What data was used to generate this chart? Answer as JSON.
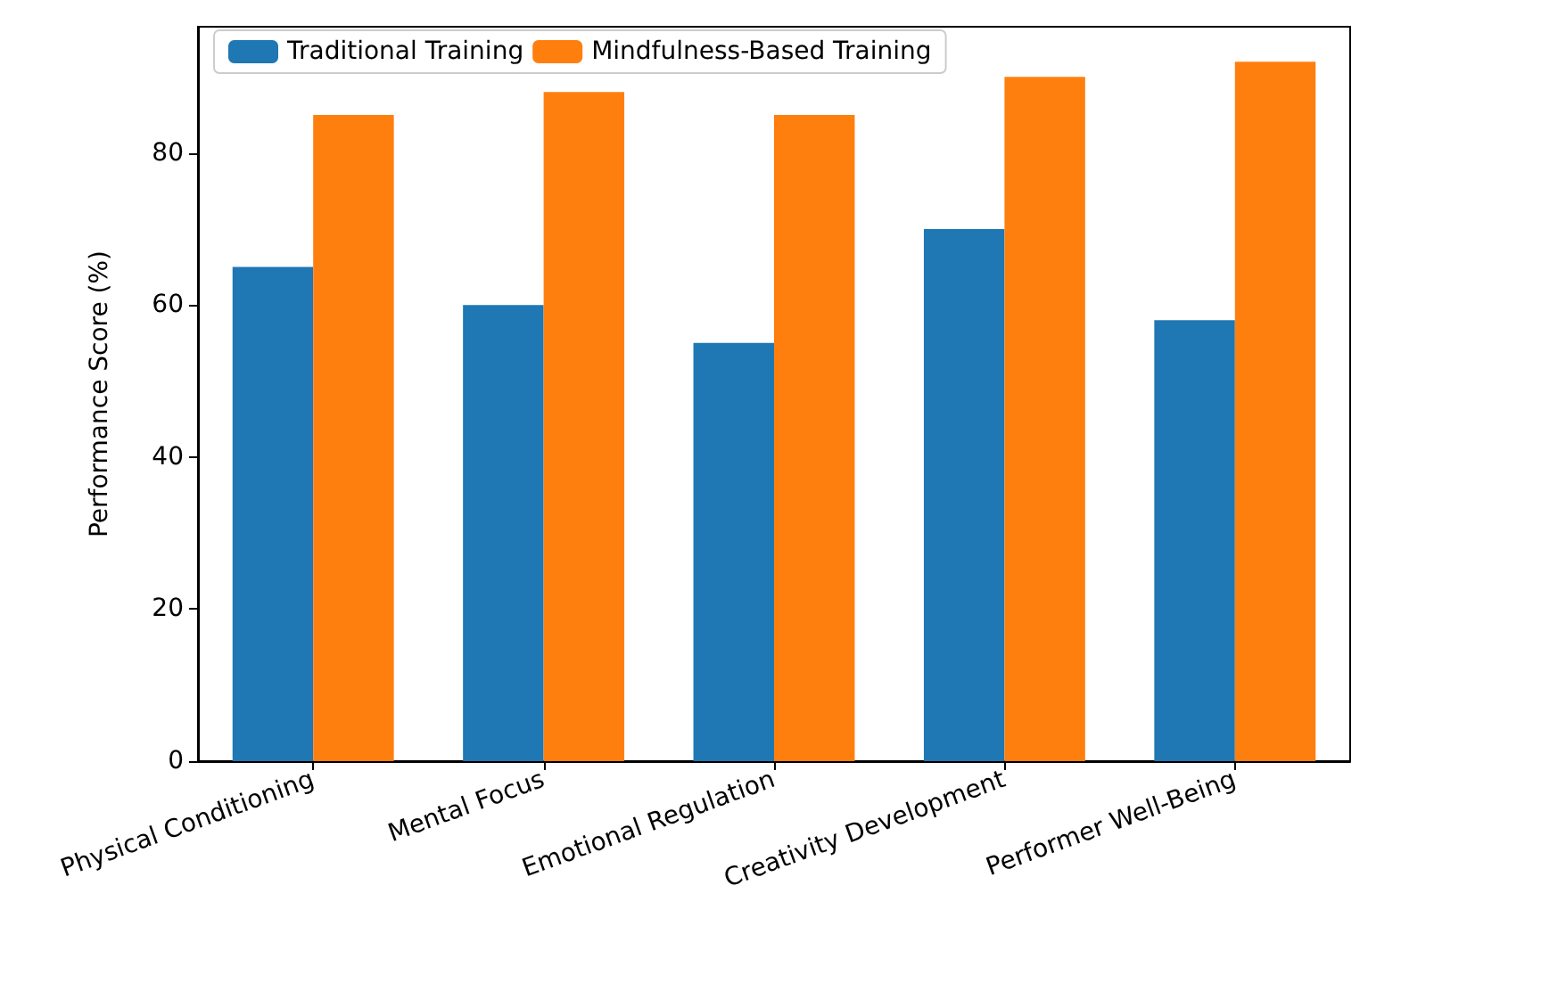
{
  "chart_data": {
    "type": "bar",
    "ylabel": "Performance Score (%)",
    "categories": [
      "Physical Conditioning",
      "Mental Focus",
      "Emotional Regulation",
      "Creativity Development",
      "Performer Well-Being"
    ],
    "series": [
      {
        "name": "Traditional Training",
        "color": "#1f77b4",
        "values": [
          65,
          60,
          55,
          70,
          58
        ]
      },
      {
        "name": "Mindfulness-Based Training",
        "color": "#ff7f0e",
        "values": [
          85,
          88,
          85,
          90,
          92
        ]
      }
    ],
    "ylim": [
      0,
      96.6
    ],
    "yticks": [
      0,
      20,
      40,
      60,
      80
    ],
    "grid": false,
    "legend": "top left"
  }
}
